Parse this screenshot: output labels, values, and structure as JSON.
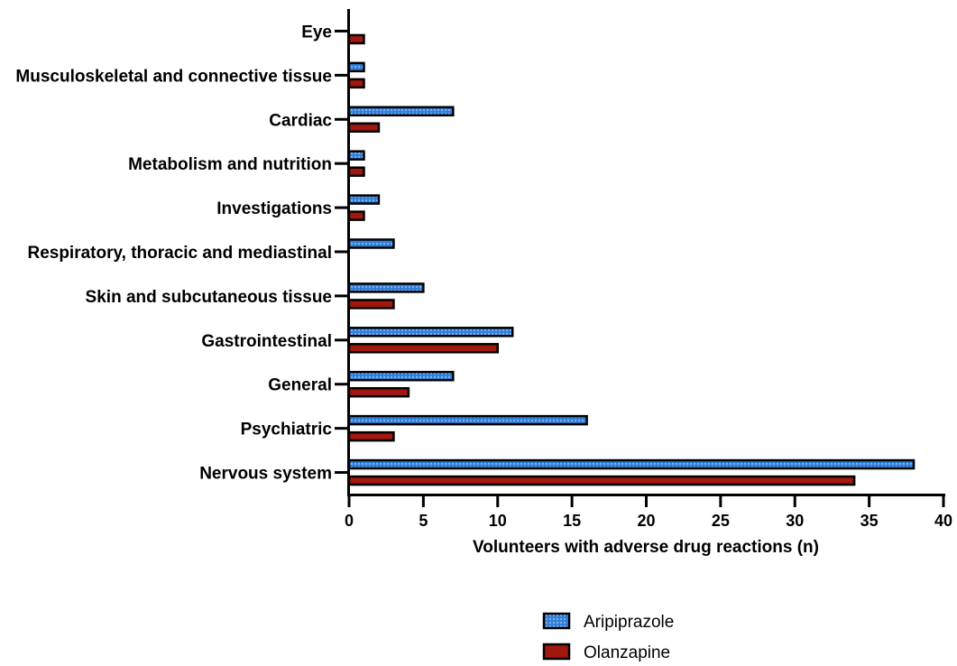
{
  "chart_data": {
    "type": "bar",
    "orientation": "horizontal",
    "categories": [
      "Eye",
      "Musculoskeletal and connective tissue",
      "Cardiac",
      "Metabolism and nutrition",
      "Investigations",
      "Respiratory, thoracic and mediastinal",
      "Skin and subcutaneous tissue",
      "Gastrointestinal",
      "General",
      "Psychiatric",
      "Nervous system"
    ],
    "series": [
      {
        "name": "Aripiprazole",
        "color": "#2f7fdb",
        "pattern": "dotted",
        "values": [
          0,
          1,
          7,
          1,
          2,
          3,
          5,
          11,
          7,
          16,
          38
        ]
      },
      {
        "name": "Olanzapine",
        "color": "#a0180e",
        "pattern": "solid",
        "values": [
          1,
          1,
          2,
          1,
          1,
          0,
          3,
          10,
          4,
          3,
          34
        ]
      }
    ],
    "title": "",
    "xlabel": "Volunteers with adverse drug reactions (n)",
    "ylabel": "",
    "xlim": [
      0,
      40
    ],
    "xticks": [
      "0",
      "5",
      "10",
      "15",
      "20",
      "25",
      "30",
      "35",
      "40"
    ],
    "grid": false,
    "legend_position": "bottom-right"
  }
}
